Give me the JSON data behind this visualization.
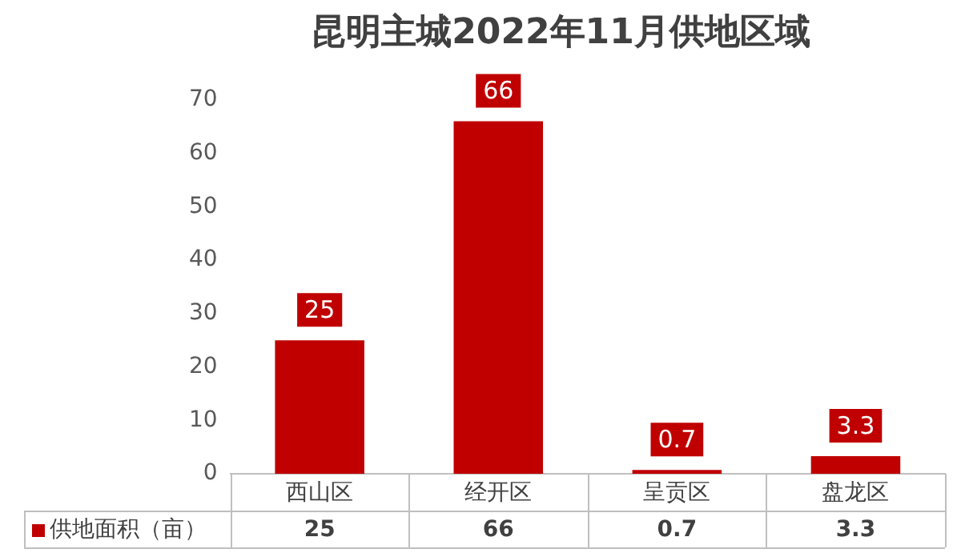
{
  "chart_data": {
    "type": "bar",
    "title": "昆明主城2022年11月供地区域",
    "categories": [
      "西山区",
      "经开区",
      "呈贡区",
      "盘龙区"
    ],
    "series": [
      {
        "name": "供地面积（亩）",
        "color": "#c00000",
        "values": [
          25,
          66,
          0.7,
          3.3
        ],
        "value_labels": [
          "25",
          "66",
          "0.7",
          "3.3"
        ]
      }
    ],
    "annotations": [
      "25",
      "66",
      "0.7",
      "3.3"
    ],
    "ylim": [
      0,
      70
    ],
    "yticks": [
      0,
      10,
      20,
      30,
      40,
      50,
      60,
      70
    ],
    "grid": false,
    "legend": "bottom",
    "data_labels": true
  }
}
